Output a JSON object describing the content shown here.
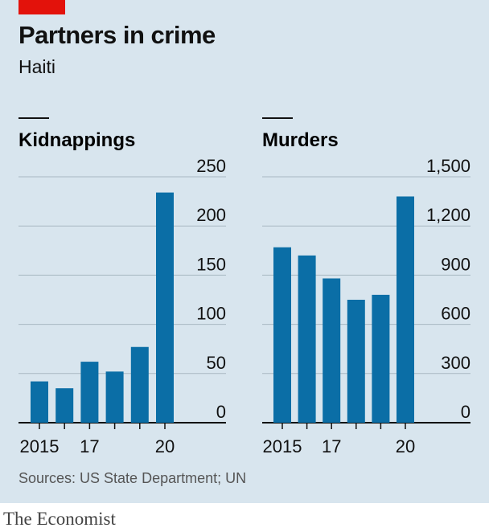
{
  "header": {
    "title": "Partners in crime",
    "subtitle": "Haiti"
  },
  "source": "Sources: US State Department; UN",
  "brand": "The Economist",
  "colors": {
    "bar": "#0b6ea6",
    "background": "#d8e5ee",
    "grid": "#a9b8c2",
    "accent": "#e3120b"
  },
  "chart_data": [
    {
      "type": "bar",
      "title": "Kidnappings",
      "categories": [
        "2015",
        "2016",
        "2017",
        "2018",
        "2019",
        "2020"
      ],
      "x_tick_labels": [
        "2015",
        "",
        "17",
        "",
        "",
        "20"
      ],
      "values": [
        42,
        35,
        62,
        52,
        77,
        234
      ],
      "ylim": [
        0,
        250
      ],
      "yticks": [
        0,
        50,
        100,
        150,
        200,
        250
      ],
      "ytick_labels": [
        "0",
        "50",
        "100",
        "150",
        "200",
        "250"
      ],
      "grid": true
    },
    {
      "type": "bar",
      "title": "Murders",
      "categories": [
        "2015",
        "2016",
        "2017",
        "2018",
        "2019",
        "2020"
      ],
      "x_tick_labels": [
        "2015",
        "",
        "17",
        "",
        "",
        "20"
      ],
      "values": [
        1070,
        1020,
        880,
        750,
        780,
        1380
      ],
      "ylim": [
        0,
        1500
      ],
      "yticks": [
        0,
        300,
        600,
        900,
        1200,
        1500
      ],
      "ytick_labels": [
        "0",
        "300",
        "600",
        "900",
        "1,200",
        "1,500"
      ],
      "grid": true
    }
  ]
}
